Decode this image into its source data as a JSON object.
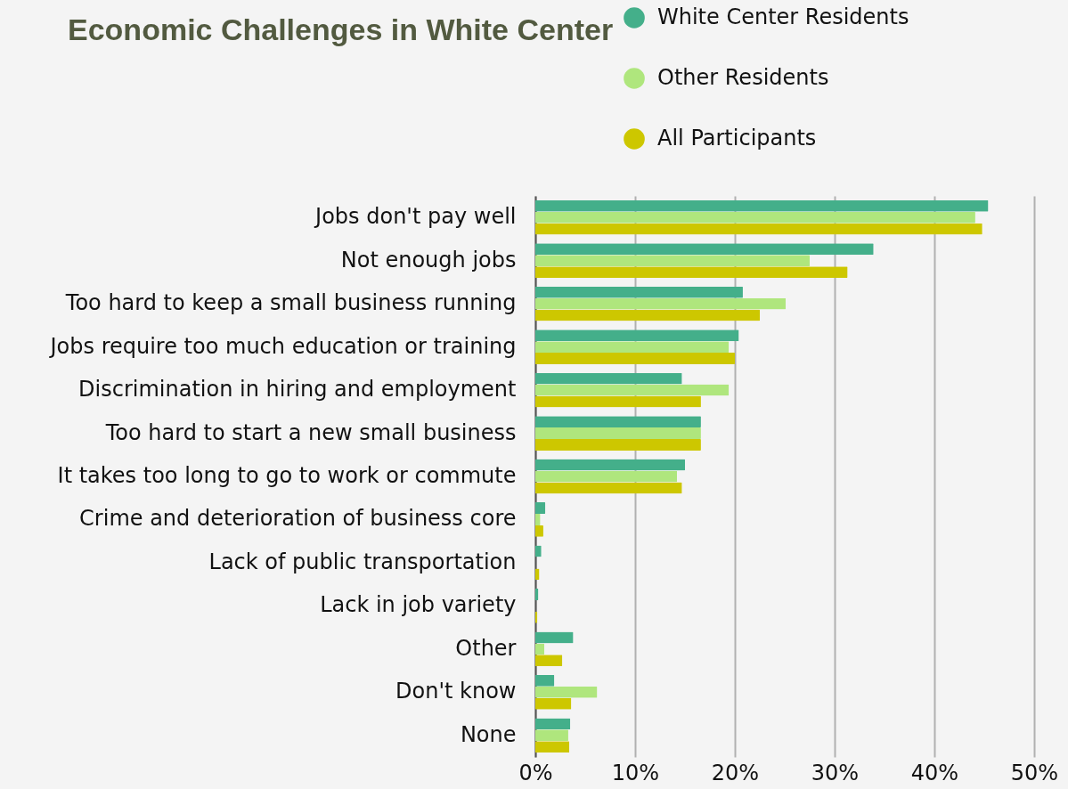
{
  "chart_data": {
    "type": "bar",
    "orientation": "horizontal",
    "title": "Economic Challenges in White Center",
    "categories": [
      "Jobs don't pay well",
      "Not enough jobs",
      "Too hard to keep a small business running",
      "Jobs require too much education or training",
      "Discrimination in hiring and employment",
      "Too hard to start a new small business",
      "It takes too long to go to work or commute",
      "Crime and deterioration of business core",
      "Lack of public transportation",
      "Lack in job variety",
      "Other",
      "Don't know",
      "None"
    ],
    "series": [
      {
        "name": "White Center Residents",
        "color": "#44af8a",
        "values": [
          45.4,
          33.9,
          20.8,
          20.4,
          14.7,
          16.6,
          15.0,
          1.0,
          0.6,
          0.3,
          3.8,
          1.9,
          3.5
        ]
      },
      {
        "name": "Other Residents",
        "color": "#afe67d",
        "values": [
          44.1,
          27.5,
          25.1,
          19.4,
          19.4,
          16.6,
          14.2,
          0.5,
          0,
          0,
          0.9,
          6.2,
          3.3
        ]
      },
      {
        "name": "All Participants",
        "color": "#cdc700",
        "values": [
          44.8,
          31.3,
          22.5,
          20.0,
          16.6,
          16.6,
          14.7,
          0.8,
          0.4,
          0.2,
          2.7,
          3.6,
          3.4
        ]
      }
    ],
    "xlim": [
      0,
      50
    ],
    "xticks": [
      {
        "value": 0,
        "label": "0%"
      },
      {
        "value": 10,
        "label": "10%"
      },
      {
        "value": 20,
        "label": "20%"
      },
      {
        "value": 30,
        "label": "30%"
      },
      {
        "value": 40,
        "label": "40%"
      },
      {
        "value": 50,
        "label": "50%"
      }
    ],
    "grid": "x",
    "legend": "top right"
  }
}
